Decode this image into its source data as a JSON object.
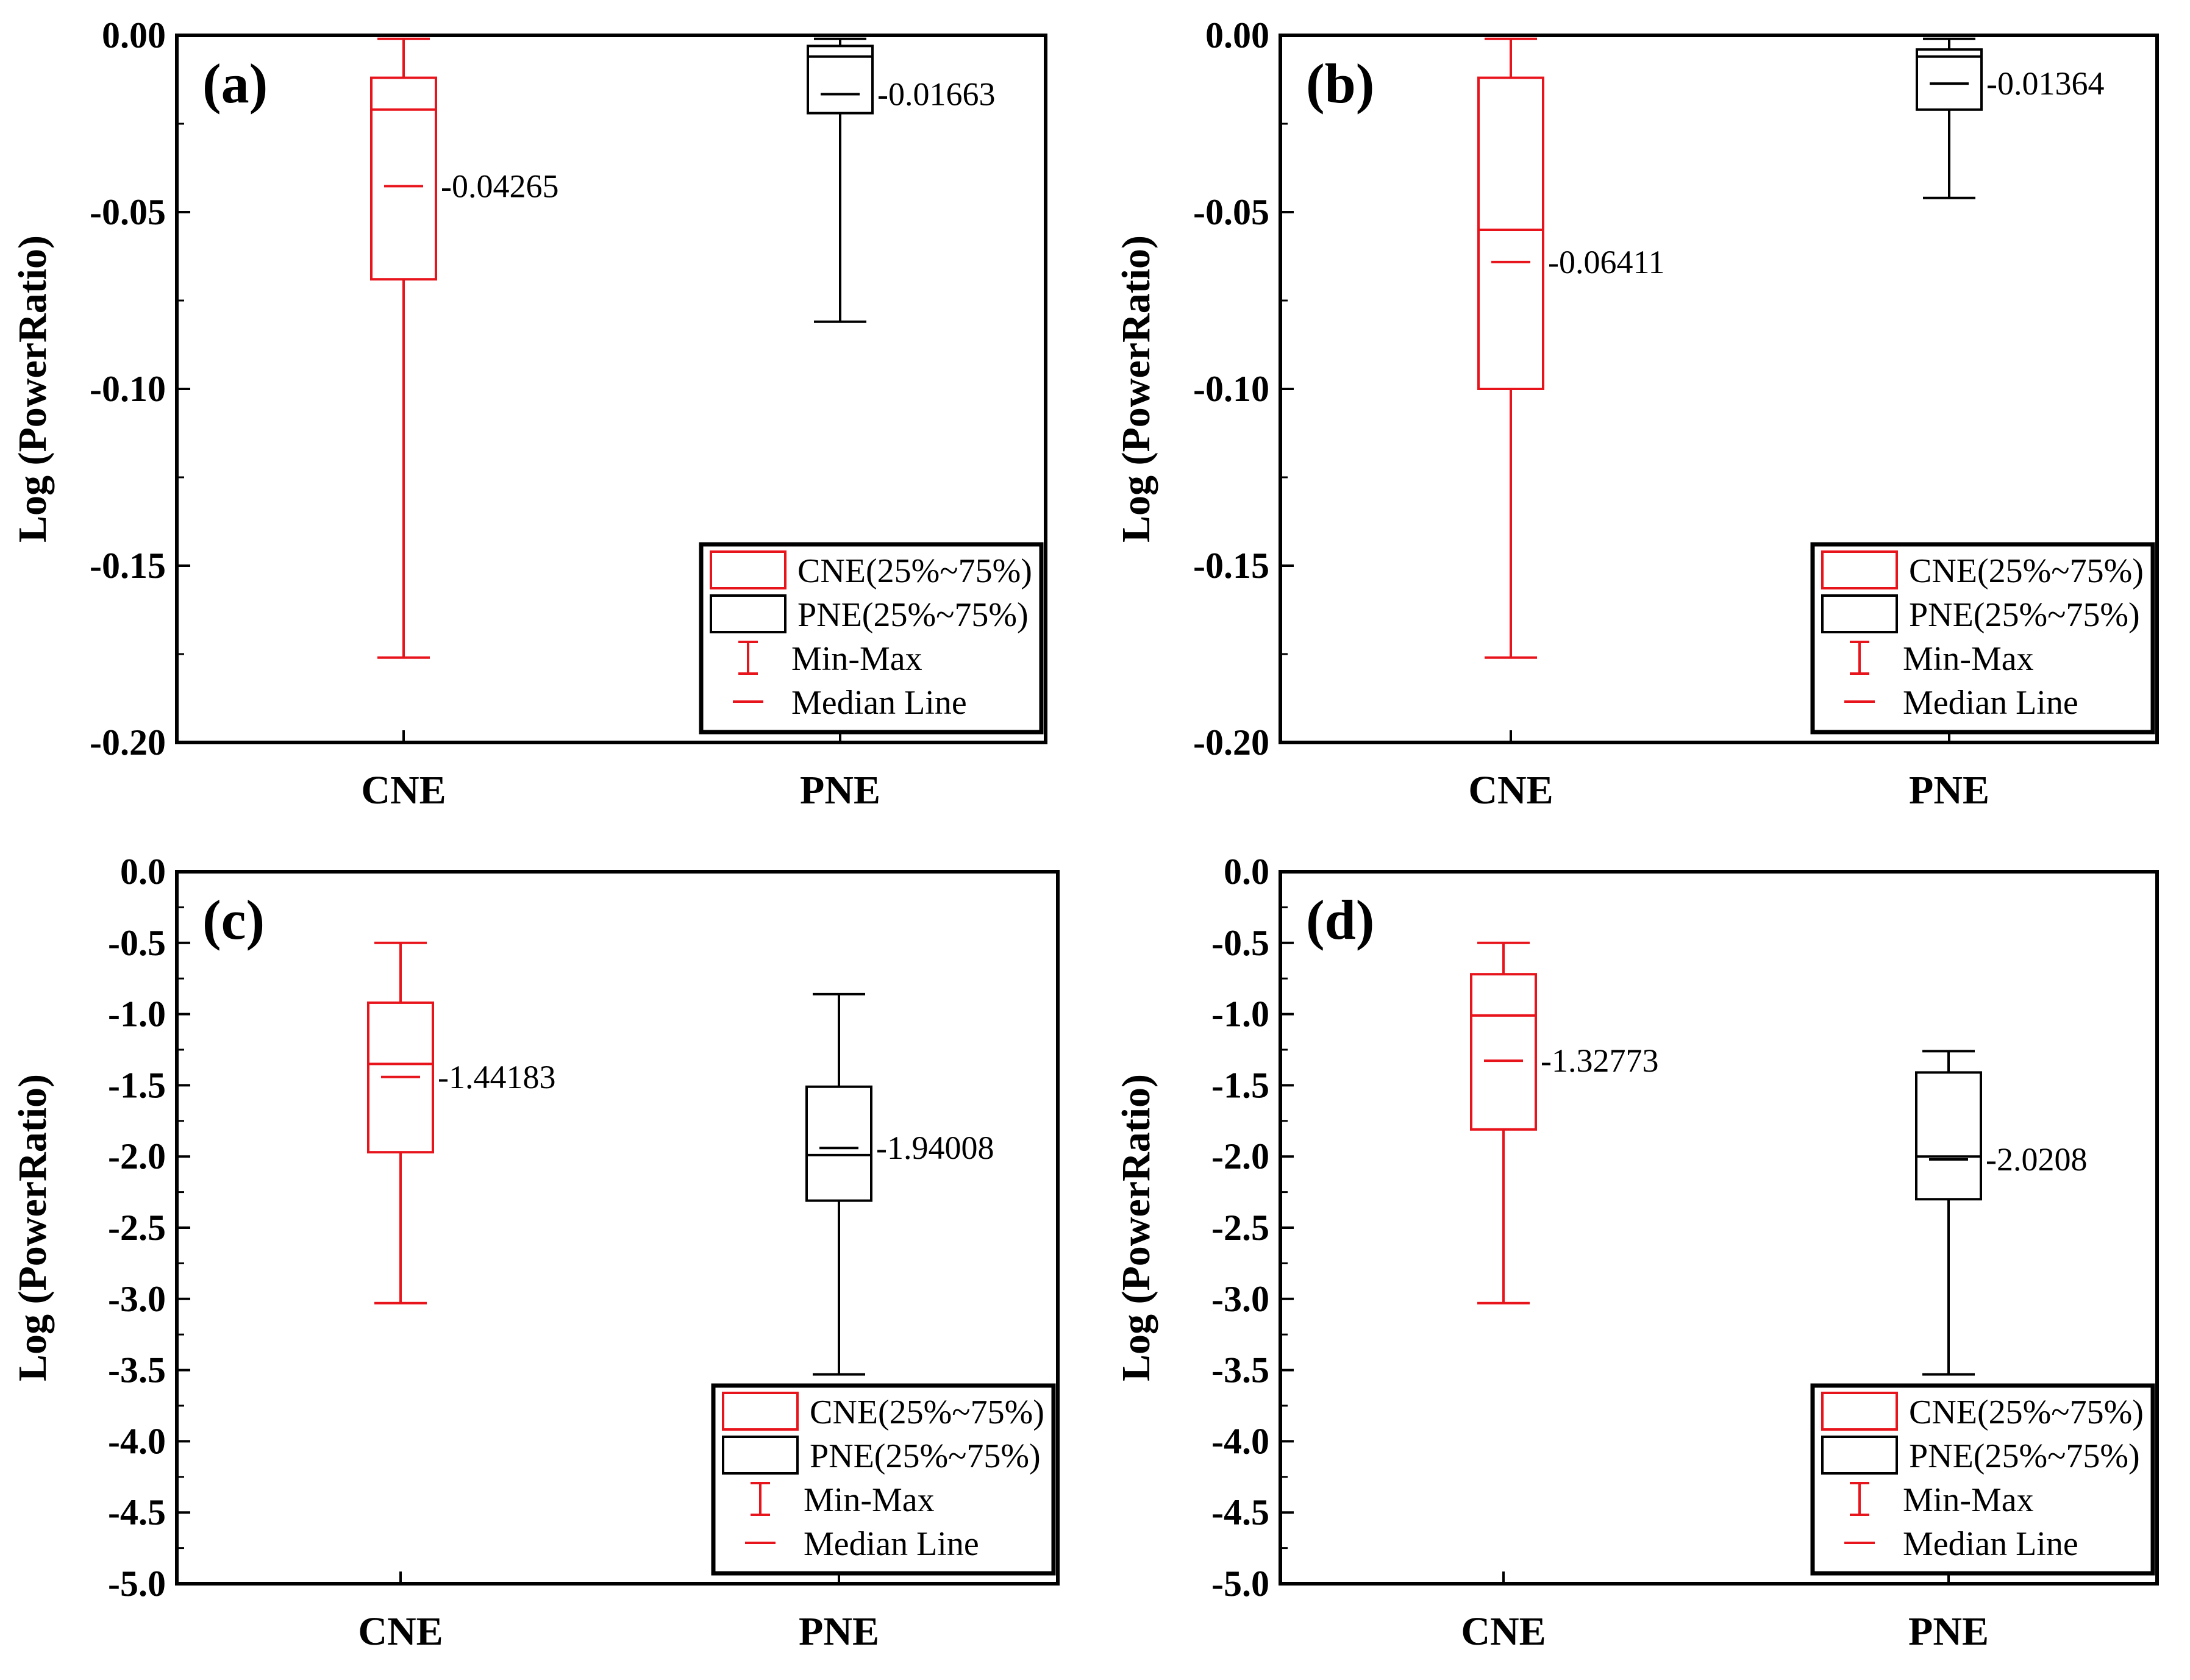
{
  "colors": {
    "cne": "#e8141c",
    "pne": "#000000",
    "axis": "#000000"
  },
  "legend": {
    "cne_box": "CNE(25%~75%)",
    "pne_box": "PNE(25%~75%)",
    "minmax": "Min-Max",
    "median": "Median Line"
  },
  "chart_data": [
    {
      "panel": "(a)",
      "type": "box",
      "ylabel": "Log (PowerRatio)",
      "ylim": [
        -0.2,
        0.0
      ],
      "yticks": [
        0.0,
        -0.05,
        -0.1,
        -0.15,
        -0.2
      ],
      "ytick_labels": [
        "0.00",
        "-0.05",
        "-0.10",
        "-0.15",
        "-0.20"
      ],
      "categories": [
        "CNE",
        "PNE"
      ],
      "series": [
        {
          "name": "CNE",
          "min": -0.176,
          "q1": -0.069,
          "median": -0.021,
          "q3": -0.012,
          "max": -0.001,
          "mean": -0.04265,
          "mean_label": "-0.04265"
        },
        {
          "name": "PNE",
          "min": -0.081,
          "q1": -0.022,
          "median": -0.006,
          "q3": -0.003,
          "max": -0.001,
          "mean": -0.01663,
          "mean_label": "-0.01663"
        }
      ]
    },
    {
      "panel": "(b)",
      "type": "box",
      "ylabel": "Log (PowerRatio)",
      "ylim": [
        -0.2,
        0.0
      ],
      "yticks": [
        0.0,
        -0.05,
        -0.1,
        -0.15,
        -0.2
      ],
      "ytick_labels": [
        "0.00",
        "-0.05",
        "-0.10",
        "-0.15",
        "-0.20"
      ],
      "categories": [
        "CNE",
        "PNE"
      ],
      "series": [
        {
          "name": "CNE",
          "min": -0.176,
          "q1": -0.1,
          "median": -0.055,
          "q3": -0.012,
          "max": -0.001,
          "mean": -0.06411,
          "mean_label": "-0.06411"
        },
        {
          "name": "PNE",
          "min": -0.046,
          "q1": -0.021,
          "median": -0.006,
          "q3": -0.004,
          "max": -0.001,
          "mean": -0.01364,
          "mean_label": "-0.01364"
        }
      ]
    },
    {
      "panel": "(c)",
      "type": "box",
      "ylabel": "Log (PowerRatio)",
      "ylim": [
        -5.0,
        0.0
      ],
      "yticks": [
        0.0,
        -0.5,
        -1.0,
        -1.5,
        -2.0,
        -2.5,
        -3.0,
        -3.5,
        -4.0,
        -4.5,
        -5.0
      ],
      "ytick_labels": [
        "0.0",
        "-0.5",
        "-1.0",
        "-1.5",
        "-2.0",
        "-2.5",
        "-3.0",
        "-3.5",
        "-4.0",
        "-4.5",
        "-5.0"
      ],
      "categories": [
        "CNE",
        "PNE"
      ],
      "series": [
        {
          "name": "CNE",
          "min": -3.03,
          "q1": -1.97,
          "median": -1.35,
          "q3": -0.92,
          "max": -0.5,
          "mean": -1.44183,
          "mean_label": "-1.44183"
        },
        {
          "name": "PNE",
          "min": -3.53,
          "q1": -2.31,
          "median": -1.99,
          "q3": -1.51,
          "max": -0.86,
          "mean": -1.94008,
          "mean_label": "-1.94008"
        }
      ]
    },
    {
      "panel": "(d)",
      "type": "box",
      "ylabel": "Log (PowerRatio)",
      "ylim": [
        -5.0,
        0.0
      ],
      "yticks": [
        0.0,
        -0.5,
        -1.0,
        -1.5,
        -2.0,
        -2.5,
        -3.0,
        -3.5,
        -4.0,
        -4.5,
        -5.0
      ],
      "ytick_labels": [
        "0.0",
        "-0.5",
        "-1.0",
        "-1.5",
        "-2.0",
        "-2.5",
        "-3.0",
        "-3.5",
        "-4.0",
        "-4.5",
        "-5.0"
      ],
      "categories": [
        "CNE",
        "PNE"
      ],
      "series": [
        {
          "name": "CNE",
          "min": -3.03,
          "q1": -1.81,
          "median": -1.01,
          "q3": -0.72,
          "max": -0.5,
          "mean": -1.32773,
          "mean_label": "-1.32773"
        },
        {
          "name": "PNE",
          "min": -3.53,
          "q1": -2.3,
          "median": -2.0,
          "q3": -1.41,
          "max": -1.26,
          "mean": -2.0208,
          "mean_label": "-2.0208"
        }
      ]
    }
  ]
}
